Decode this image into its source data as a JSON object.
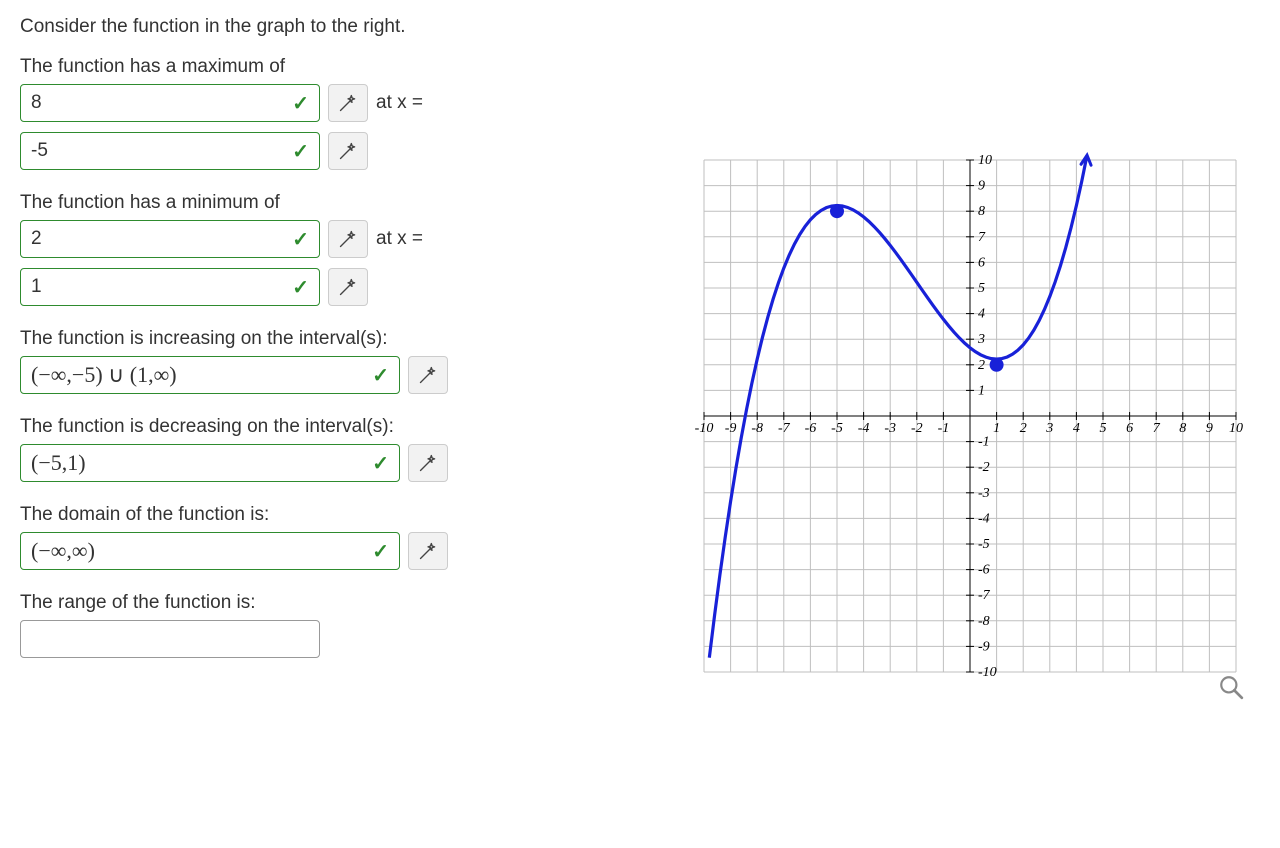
{
  "prompt": "Consider the function in the graph to the right.",
  "q1": {
    "label": "The function has a maximum of",
    "value_input": {
      "value": "8",
      "correct": true
    },
    "at_x_label": "at x =",
    "x_input": {
      "value": "-5",
      "correct": true
    }
  },
  "q2": {
    "label": "The function has a minimum of",
    "value_input": {
      "value": "2",
      "correct": true
    },
    "at_x_label": "at x =",
    "x_input": {
      "value": "1",
      "correct": true
    }
  },
  "q3": {
    "label": "The function is increasing on the interval(s):",
    "input": {
      "value": "(−∞,−5) ∪ (1,∞)",
      "correct": true
    }
  },
  "q4": {
    "label": "The function is decreasing on the interval(s):",
    "input": {
      "value": "(−5,1)",
      "correct": true
    }
  },
  "q5": {
    "label": "The domain of the function is:",
    "input": {
      "value": "(−∞,∞)",
      "correct": true
    }
  },
  "q6": {
    "label": "The range of the function is:",
    "input": {
      "value": "",
      "correct": null
    }
  },
  "chart": {
    "type": "line",
    "xlim": [
      -10,
      10
    ],
    "ylim": [
      -10,
      10
    ],
    "xtick_step": 1,
    "ytick_step": 1,
    "grid_color": "#bfbfbf",
    "axis_color": "#000000",
    "curve_color": "#1821d8",
    "background_color": "#ffffff",
    "label_fontsize": 14,
    "curve_width": 3.2,
    "point_radius": 7,
    "critical_points": [
      {
        "x": -5,
        "y": 8
      },
      {
        "x": 1,
        "y": 2
      }
    ],
    "function_comment": "cubic through (-5,8) local max, (1,2) local min",
    "curve_samples_x_step": 0.2
  }
}
